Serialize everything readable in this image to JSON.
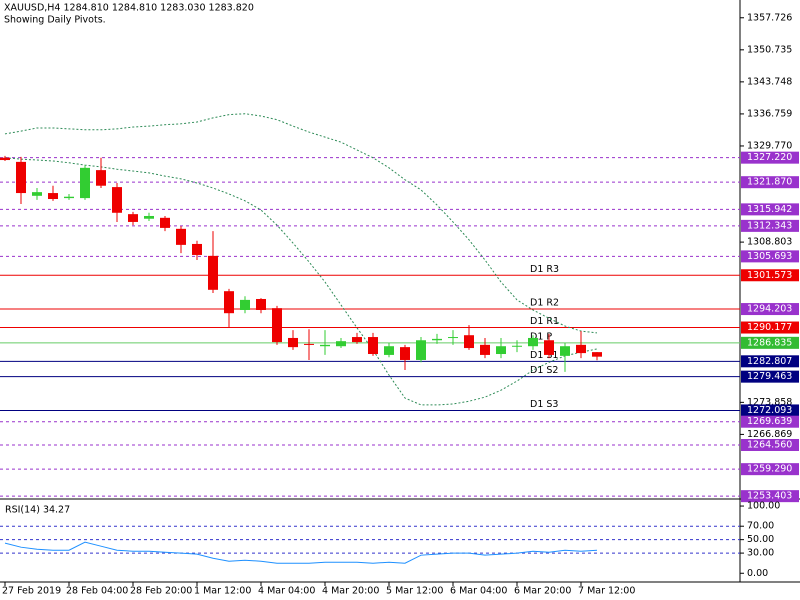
{
  "chart_data": [
    {
      "type": "candlestick",
      "title": "XAUUSD,H4  1284.810 1284.810 1283.030 1283.820",
      "subtitle": "Showing Daily Pivots.",
      "categories": [
        "27 Feb 2019",
        null,
        null,
        null,
        "28 Feb 04:00",
        null,
        null,
        null,
        "28 Feb 20:00",
        null,
        null,
        null,
        "1 Mar 12:00",
        null,
        null,
        null,
        "4 Mar 04:00",
        null,
        null,
        null,
        "4 Mar 20:00",
        null,
        null,
        null,
        "5 Mar 12:00",
        null,
        null,
        null,
        "6 Mar 04:00",
        null,
        null,
        null,
        "6 Mar 20:00",
        null,
        null,
        null,
        "7 Mar 12:00",
        null
      ],
      "open": [
        1327.2,
        1326.3,
        1318.9,
        1319.5,
        1318.4,
        1318.4,
        1324.5,
        1320.8,
        1314.9,
        1313.9,
        1314.1,
        1311.7,
        1308.4,
        1305.8,
        1298.1,
        1294.0,
        1296.4,
        1294.4,
        1287.9,
        1286.6,
        1286.1,
        1286.1,
        1288.1,
        1288.1,
        1284.2,
        1285.9,
        1283.1,
        1287.4,
        1287.9,
        1288.5,
        1286.4,
        1284.4,
        1286.1,
        1286.1,
        1287.4,
        1284.0,
        1286.4,
        1284.81
      ],
      "high": [
        1327.6,
        1327.4,
        1320.6,
        1321.1,
        1319.3,
        1325.6,
        1327.2,
        1321.7,
        1315.4,
        1315.2,
        1314.5,
        1312.3,
        1309.1,
        1311.2,
        1298.6,
        1297.0,
        1296.6,
        1294.9,
        1289.6,
        1289.8,
        1289.6,
        1287.9,
        1289.0,
        1289.0,
        1286.8,
        1286.4,
        1288.1,
        1288.8,
        1289.6,
        1290.7,
        1287.9,
        1287.9,
        1287.4,
        1288.5,
        1288.8,
        1286.8,
        1289.4,
        1284.81
      ],
      "low": [
        1326.5,
        1317.1,
        1318.0,
        1317.8,
        1318.0,
        1318.0,
        1320.6,
        1313.2,
        1312.5,
        1313.4,
        1311.2,
        1306.4,
        1304.9,
        1297.7,
        1290.1,
        1293.3,
        1293.3,
        1286.4,
        1285.3,
        1283.1,
        1284.2,
        1285.7,
        1286.6,
        1284.0,
        1283.7,
        1280.9,
        1282.6,
        1286.6,
        1286.4,
        1285.3,
        1283.5,
        1283.5,
        1284.8,
        1285.3,
        1283.5,
        1280.5,
        1283.5,
        1283.03
      ],
      "close": [
        1326.7,
        1319.5,
        1319.7,
        1318.2,
        1318.7,
        1325.0,
        1321.1,
        1315.2,
        1313.2,
        1314.5,
        1311.9,
        1308.2,
        1306.0,
        1298.4,
        1293.3,
        1296.2,
        1294.0,
        1287.0,
        1285.9,
        1286.4,
        1286.4,
        1287.2,
        1287.0,
        1284.4,
        1286.1,
        1283.1,
        1287.4,
        1287.7,
        1288.1,
        1285.7,
        1284.2,
        1286.1,
        1286.2,
        1287.9,
        1284.2,
        1286.1,
        1284.6,
        1283.82
      ],
      "up_color": "#32cd32",
      "down_color": "#ee0000",
      "series": [
        {
          "color": "#2e8b57",
          "values": [
            1332.4,
            1333.0,
            1333.7,
            1333.7,
            1333.5,
            1333.3,
            1333.3,
            1333.5,
            1333.9,
            1334.1,
            1334.4,
            1334.6,
            1335.0,
            1335.9,
            1336.6,
            1336.8,
            1336.3,
            1335.5,
            1334.1,
            1332.8,
            1331.7,
            1330.6,
            1328.9,
            1327.2,
            1325.0,
            1322.4,
            1320.2,
            1316.9,
            1313.2,
            1309.3,
            1304.9,
            1300.1,
            1296.2,
            1294.0,
            1292.2,
            1290.5,
            1289.4,
            1289.0
          ]
        },
        {
          "color": "#2e8b57",
          "values": [
            1327.2,
            1326.9,
            1326.7,
            1326.5,
            1326.1,
            1325.6,
            1325.2,
            1324.7,
            1324.3,
            1323.9,
            1323.2,
            1322.6,
            1321.7,
            1320.6,
            1319.3,
            1317.8,
            1315.8,
            1312.5,
            1308.6,
            1304.5,
            1300.1,
            1295.1,
            1290.1,
            1285.3,
            1279.8,
            1274.8,
            1273.3,
            1273.3,
            1273.5,
            1274.1,
            1275.0,
            1276.5,
            1278.5,
            1280.9,
            1282.6,
            1284.0,
            1284.8,
            1285.5
          ]
        }
      ],
      "levels": [
        {
          "value": 1327.22,
          "label": "1327.220",
          "color": "#9932cc",
          "style": "dashed"
        },
        {
          "value": 1321.87,
          "label": "1321.870",
          "color": "#9932cc",
          "style": "dashed"
        },
        {
          "value": 1315.942,
          "label": "1315.942",
          "color": "#9932cc",
          "style": "dashed"
        },
        {
          "value": 1312.343,
          "label": "1312.343",
          "color": "#9932cc",
          "style": "dashed"
        },
        {
          "value": 1305.693,
          "label": "1305.693",
          "color": "#9932cc",
          "style": "dashed"
        },
        {
          "value": 1301.573,
          "label": "1301.573",
          "name": "D1 R3",
          "color": "#ee0000",
          "style": "solid"
        },
        {
          "value": 1294.203,
          "label": "1294.203",
          "name": "D1 R2",
          "color": "#ee0000",
          "box": "#9932cc",
          "style": "solid"
        },
        {
          "value": 1290.177,
          "label": "1290.177",
          "name": "D1 R1",
          "color": "#ee0000",
          "style": "solid"
        },
        {
          "value": 1286.835,
          "label": "1286.835",
          "name": "D1 P",
          "color": "#66cc66",
          "box": "#33bb33",
          "style": "solid"
        },
        {
          "value": 1282.807,
          "label": "1282.807",
          "name": "D1 S1",
          "color": "#000080",
          "style": "solid"
        },
        {
          "value": 1279.463,
          "label": "1279.463",
          "name": "D1 S2",
          "color": "#000080",
          "style": "solid"
        },
        {
          "value": 1272.093,
          "label": "1272.093",
          "name": "D1 S3",
          "color": "#000080",
          "style": "solid"
        },
        {
          "value": 1269.639,
          "label": "1269.639",
          "color": "#9932cc",
          "style": "dashed"
        },
        {
          "value": 1264.56,
          "label": "1264.560",
          "color": "#9932cc",
          "style": "dashed"
        },
        {
          "value": 1259.29,
          "label": "1259.290",
          "color": "#9932cc",
          "style": "dashed"
        },
        {
          "value": 1253.403,
          "label": "1253.403",
          "color": "#9932cc",
          "style": "dashed"
        }
      ],
      "ylim": [
        1253.0,
        1361.6
      ],
      "yticks": [
        {
          "value": 1357.726,
          "label": "1357.726"
        },
        {
          "value": 1350.735,
          "label": "1350.735"
        },
        {
          "value": 1343.748,
          "label": "1343.748"
        },
        {
          "value": 1336.759,
          "label": "1336.759"
        },
        {
          "value": 1329.77,
          "label": "1329.770"
        },
        {
          "value": 1308.803,
          "label": "1308.803"
        },
        {
          "value": 1273.858,
          "label": "1273.858"
        },
        {
          "value": 1266.869,
          "label": "1266.869"
        }
      ]
    },
    {
      "type": "line",
      "title": "RSI(14) 34.27",
      "color": "#1e90ff",
      "values": [
        44.8,
        38.8,
        35.8,
        34.3,
        34.3,
        46.3,
        40.3,
        34.3,
        32.8,
        32.8,
        31.3,
        29.9,
        28.4,
        22.4,
        17.9,
        19.4,
        17.9,
        14.9,
        14.9,
        14.9,
        16.4,
        16.4,
        16.4,
        14.9,
        16.4,
        14.9,
        26.9,
        28.4,
        29.9,
        29.9,
        26.9,
        28.4,
        29.9,
        32.8,
        31.3,
        34.3,
        32.8,
        34.27
      ],
      "levels": [
        70,
        50,
        30
      ],
      "level_color": "#3333cc",
      "ylim": [
        -13,
        109
      ],
      "yticks": [
        {
          "value": 100,
          "label": "100.00"
        },
        {
          "value": 70,
          "label": "70.00"
        },
        {
          "value": 50,
          "label": "50.00"
        },
        {
          "value": 30,
          "label": "30.00"
        },
        {
          "value": 0,
          "label": "0.00"
        }
      ]
    }
  ]
}
